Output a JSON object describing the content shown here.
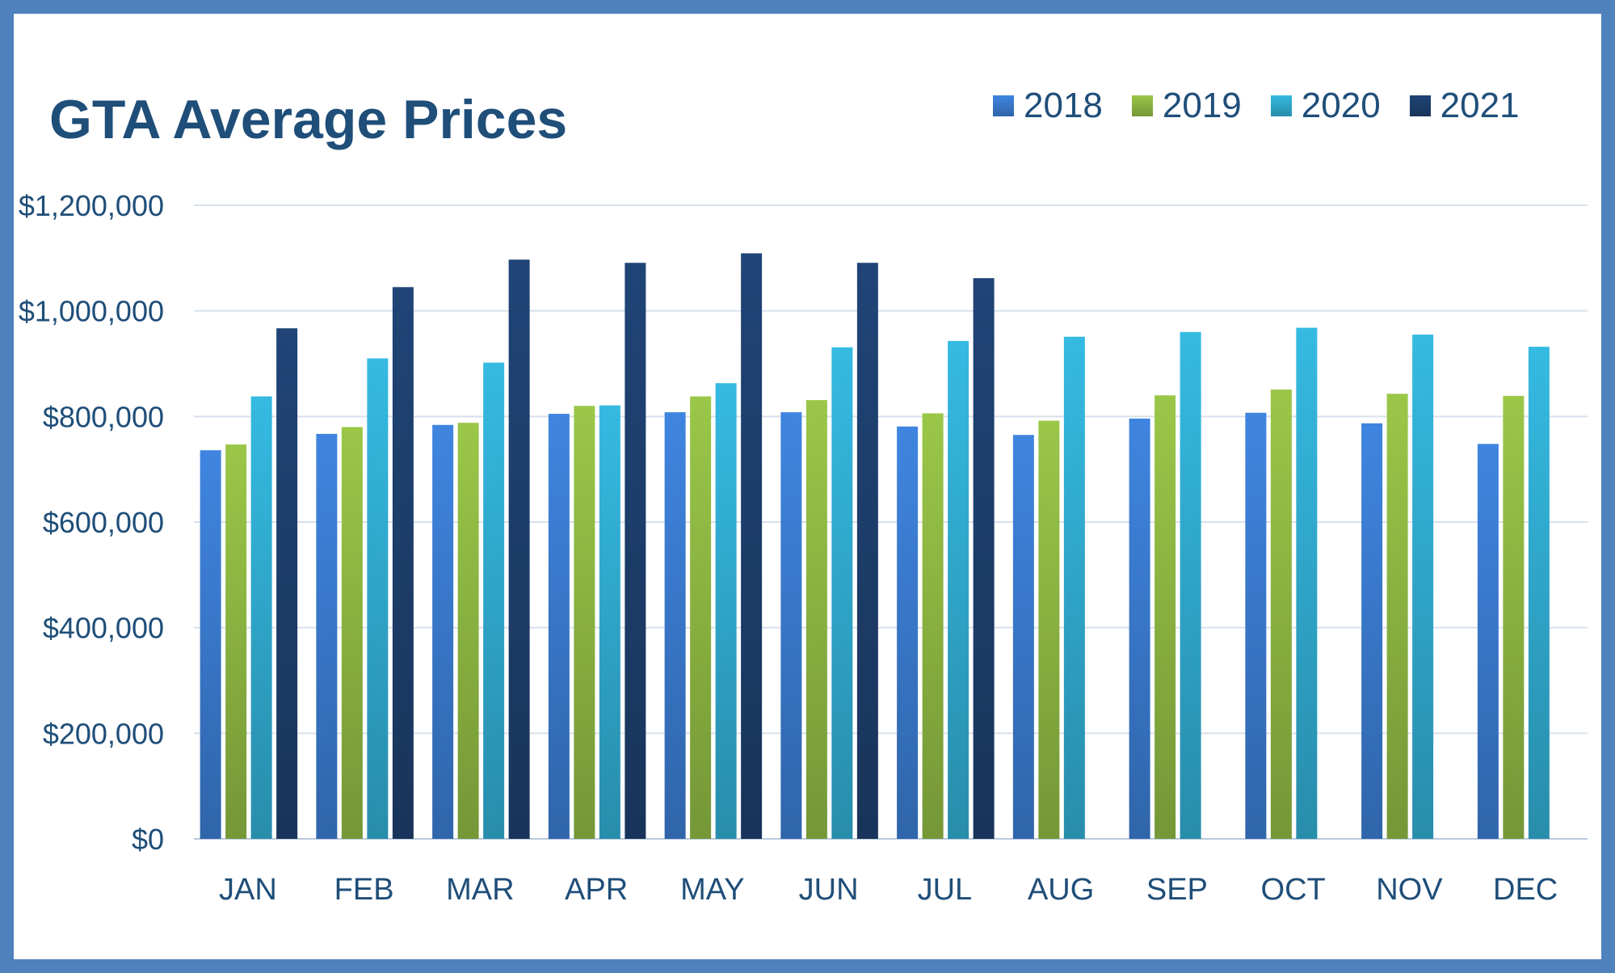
{
  "chart_data": {
    "type": "bar",
    "title": "GTA Average Prices",
    "xlabel": "",
    "ylabel": "",
    "ylim": [
      0,
      1200000
    ],
    "yticks": [
      0,
      200000,
      400000,
      600000,
      800000,
      1000000,
      1200000
    ],
    "ytick_labels": [
      "$0",
      "$200,000",
      "$400,000",
      "$600,000",
      "$800,000",
      "$1,000,000",
      "$1,200,000"
    ],
    "grid": true,
    "legend_position": "top-right",
    "categories": [
      "JAN",
      "FEB",
      "MAR",
      "APR",
      "MAY",
      "JUN",
      "JUL",
      "AUG",
      "SEP",
      "OCT",
      "NOV",
      "DEC"
    ],
    "series": [
      {
        "name": "2018",
        "color": "#3a7bcf",
        "values": [
          736000,
          767000,
          784000,
          805000,
          808000,
          808000,
          781000,
          765000,
          796000,
          807000,
          787000,
          748000
        ]
      },
      {
        "name": "2019",
        "color": "#8fb843",
        "values": [
          747000,
          780000,
          788000,
          820000,
          838000,
          831000,
          806000,
          792000,
          840000,
          851000,
          843000,
          839000
        ]
      },
      {
        "name": "2020",
        "color": "#31acd1",
        "values": [
          838000,
          910000,
          902000,
          821000,
          863000,
          931000,
          943000,
          951000,
          960000,
          968000,
          955000,
          932000
        ]
      },
      {
        "name": "2021",
        "color": "#1e3f6e",
        "values": [
          967000,
          1045000,
          1097000,
          1091000,
          1109000,
          1091000,
          1062000,
          null,
          null,
          null,
          null,
          null
        ]
      }
    ]
  }
}
